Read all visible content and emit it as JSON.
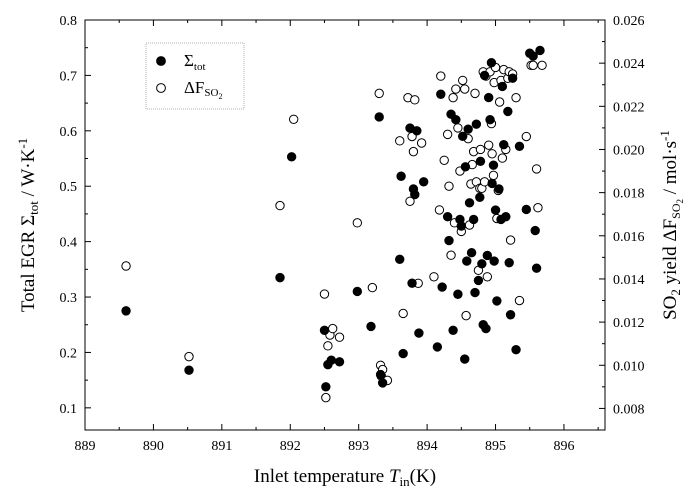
{
  "chart_data": {
    "type": "scatter",
    "title": "",
    "xlabel": {
      "prefix": "Inlet temperature ",
      "symbol": "T",
      "sub": "in",
      "suffix": "(K)"
    },
    "ylabel_left": {
      "prefix": "Total EGR ",
      "symbol": "Σ",
      "sub": "tot",
      "suffix": " / W·K",
      "sup": "-1"
    },
    "ylabel_right": {
      "prefix": "SO",
      "sub1": "2",
      "mid": " yield ΔF",
      "sub2": "SO",
      "sub3": "2",
      "suffix": " / mol·s",
      "sup": "-1"
    },
    "xlim": [
      889,
      896.6
    ],
    "ylim_left": [
      0.06,
      0.8
    ],
    "ylim_right": [
      0.007,
      0.026
    ],
    "x_ticks": [
      "889",
      "890",
      "891",
      "892",
      "893",
      "894",
      "895",
      "896"
    ],
    "y_left_ticks": [
      "0.1",
      "0.2",
      "0.3",
      "0.4",
      "0.5",
      "0.6",
      "0.7",
      "0.8"
    ],
    "y_right_ticks": [
      "0.008",
      "0.010",
      "0.012",
      "0.014",
      "0.016",
      "0.018",
      "0.020",
      "0.022",
      "0.024",
      "0.026"
    ],
    "grid": false,
    "legend_position": "top-left",
    "series": [
      {
        "name": {
          "base": "Σ",
          "sub": "tot"
        },
        "marker": "filled-circle",
        "axis": "left",
        "points": [
          [
            889.6,
            0.275
          ],
          [
            890.52,
            0.168
          ],
          [
            891.85,
            0.335
          ],
          [
            892.02,
            0.553
          ],
          [
            892.5,
            0.24
          ],
          [
            892.52,
            0.138
          ],
          [
            892.55,
            0.178
          ],
          [
            892.6,
            0.186
          ],
          [
            892.72,
            0.183
          ],
          [
            892.98,
            0.31
          ],
          [
            893.18,
            0.247
          ],
          [
            893.3,
            0.625
          ],
          [
            893.32,
            0.16
          ],
          [
            893.35,
            0.145
          ],
          [
            893.6,
            0.368
          ],
          [
            893.62,
            0.518
          ],
          [
            893.65,
            0.198
          ],
          [
            893.75,
            0.605
          ],
          [
            893.78,
            0.325
          ],
          [
            893.8,
            0.495
          ],
          [
            893.82,
            0.485
          ],
          [
            893.85,
            0.6
          ],
          [
            893.88,
            0.235
          ],
          [
            893.95,
            0.508
          ],
          [
            894.15,
            0.21
          ],
          [
            894.2,
            0.666
          ],
          [
            894.22,
            0.318
          ],
          [
            894.3,
            0.445
          ],
          [
            894.32,
            0.402
          ],
          [
            894.35,
            0.63
          ],
          [
            894.38,
            0.24
          ],
          [
            894.42,
            0.62
          ],
          [
            894.45,
            0.305
          ],
          [
            894.48,
            0.44
          ],
          [
            894.5,
            0.428
          ],
          [
            894.52,
            0.59
          ],
          [
            894.55,
            0.188
          ],
          [
            894.56,
            0.535
          ],
          [
            894.58,
            0.365
          ],
          [
            894.6,
            0.603
          ],
          [
            894.62,
            0.47
          ],
          [
            894.65,
            0.38
          ],
          [
            894.68,
            0.44
          ],
          [
            894.7,
            0.308
          ],
          [
            894.72,
            0.612
          ],
          [
            894.75,
            0.33
          ],
          [
            894.77,
            0.48
          ],
          [
            894.78,
            0.545
          ],
          [
            894.8,
            0.36
          ],
          [
            894.82,
            0.25
          ],
          [
            894.84,
            0.7
          ],
          [
            894.86,
            0.243
          ],
          [
            894.88,
            0.375
          ],
          [
            894.9,
            0.66
          ],
          [
            894.92,
            0.62
          ],
          [
            894.94,
            0.723
          ],
          [
            894.95,
            0.505
          ],
          [
            894.97,
            0.538
          ],
          [
            894.98,
            0.365
          ],
          [
            895.0,
            0.457
          ],
          [
            895.02,
            0.293
          ],
          [
            895.05,
            0.495
          ],
          [
            895.08,
            0.44
          ],
          [
            895.1,
            0.68
          ],
          [
            895.12,
            0.575
          ],
          [
            895.15,
            0.445
          ],
          [
            895.18,
            0.635
          ],
          [
            895.2,
            0.362
          ],
          [
            895.22,
            0.268
          ],
          [
            895.25,
            0.695
          ],
          [
            895.3,
            0.205
          ],
          [
            895.35,
            0.572
          ],
          [
            895.45,
            0.458
          ],
          [
            895.5,
            0.74
          ],
          [
            895.55,
            0.735
          ],
          [
            895.58,
            0.42
          ],
          [
            895.6,
            0.352
          ],
          [
            895.65,
            0.745
          ]
        ]
      },
      {
        "name": {
          "base": "ΔF",
          "sub": "SO",
          "sub2": "2"
        },
        "marker": "open-circle",
        "axis": "right",
        "points": [
          [
            889.6,
            0.0146
          ],
          [
            890.52,
            0.0104
          ],
          [
            891.85,
            0.0174
          ],
          [
            892.05,
            0.0214
          ],
          [
            892.5,
            0.0133
          ],
          [
            892.52,
            0.0085
          ],
          [
            892.55,
            0.0109
          ],
          [
            892.58,
            0.0114
          ],
          [
            892.62,
            0.0117
          ],
          [
            892.72,
            0.0113
          ],
          [
            892.98,
            0.0166
          ],
          [
            893.2,
            0.0136
          ],
          [
            893.3,
            0.0226
          ],
          [
            893.32,
            0.01
          ],
          [
            893.33,
            0.0095
          ],
          [
            893.35,
            0.0098
          ],
          [
            893.42,
            0.0093
          ],
          [
            893.6,
            0.0204
          ],
          [
            893.65,
            0.0124
          ],
          [
            893.72,
            0.0224
          ],
          [
            893.75,
            0.0176
          ],
          [
            893.78,
            0.0206
          ],
          [
            893.8,
            0.0199
          ],
          [
            893.82,
            0.0223
          ],
          [
            893.87,
            0.0138
          ],
          [
            893.92,
            0.0203
          ],
          [
            894.1,
            0.0141
          ],
          [
            894.18,
            0.0172
          ],
          [
            894.2,
            0.0234
          ],
          [
            894.25,
            0.0195
          ],
          [
            894.3,
            0.0207
          ],
          [
            894.32,
            0.0183
          ],
          [
            894.35,
            0.0151
          ],
          [
            894.38,
            0.0224
          ],
          [
            894.4,
            0.0166
          ],
          [
            894.42,
            0.0228
          ],
          [
            894.45,
            0.021
          ],
          [
            894.48,
            0.019
          ],
          [
            894.5,
            0.0162
          ],
          [
            894.52,
            0.0232
          ],
          [
            894.55,
            0.0228
          ],
          [
            894.57,
            0.0123
          ],
          [
            894.6,
            0.0205
          ],
          [
            894.62,
            0.0165
          ],
          [
            894.64,
            0.0184
          ],
          [
            894.66,
            0.0193
          ],
          [
            894.68,
            0.0199
          ],
          [
            894.7,
            0.0226
          ],
          [
            894.72,
            0.0185
          ],
          [
            894.75,
            0.0144
          ],
          [
            894.77,
            0.0182
          ],
          [
            894.78,
            0.02
          ],
          [
            894.8,
            0.0182
          ],
          [
            894.82,
            0.0236
          ],
          [
            894.84,
            0.0185
          ],
          [
            894.86,
            0.0234
          ],
          [
            894.88,
            0.0141
          ],
          [
            894.9,
            0.0202
          ],
          [
            894.92,
            0.0236
          ],
          [
            894.94,
            0.0212
          ],
          [
            894.95,
            0.0198
          ],
          [
            894.97,
            0.0188
          ],
          [
            894.98,
            0.0231
          ],
          [
            895.0,
            0.0238
          ],
          [
            895.02,
            0.0168
          ],
          [
            895.04,
            0.0181
          ],
          [
            895.06,
            0.0222
          ],
          [
            895.08,
            0.0232
          ],
          [
            895.1,
            0.0196
          ],
          [
            895.12,
            0.0237
          ],
          [
            895.15,
            0.02
          ],
          [
            895.18,
            0.0233
          ],
          [
            895.2,
            0.0236
          ],
          [
            895.22,
            0.0158
          ],
          [
            895.25,
            0.0235
          ],
          [
            895.3,
            0.0224
          ],
          [
            895.35,
            0.013
          ],
          [
            895.45,
            0.0206
          ],
          [
            895.52,
            0.0239
          ],
          [
            895.55,
            0.0239
          ],
          [
            895.6,
            0.0191
          ],
          [
            895.62,
            0.0173
          ],
          [
            895.68,
            0.0239
          ]
        ]
      }
    ]
  }
}
